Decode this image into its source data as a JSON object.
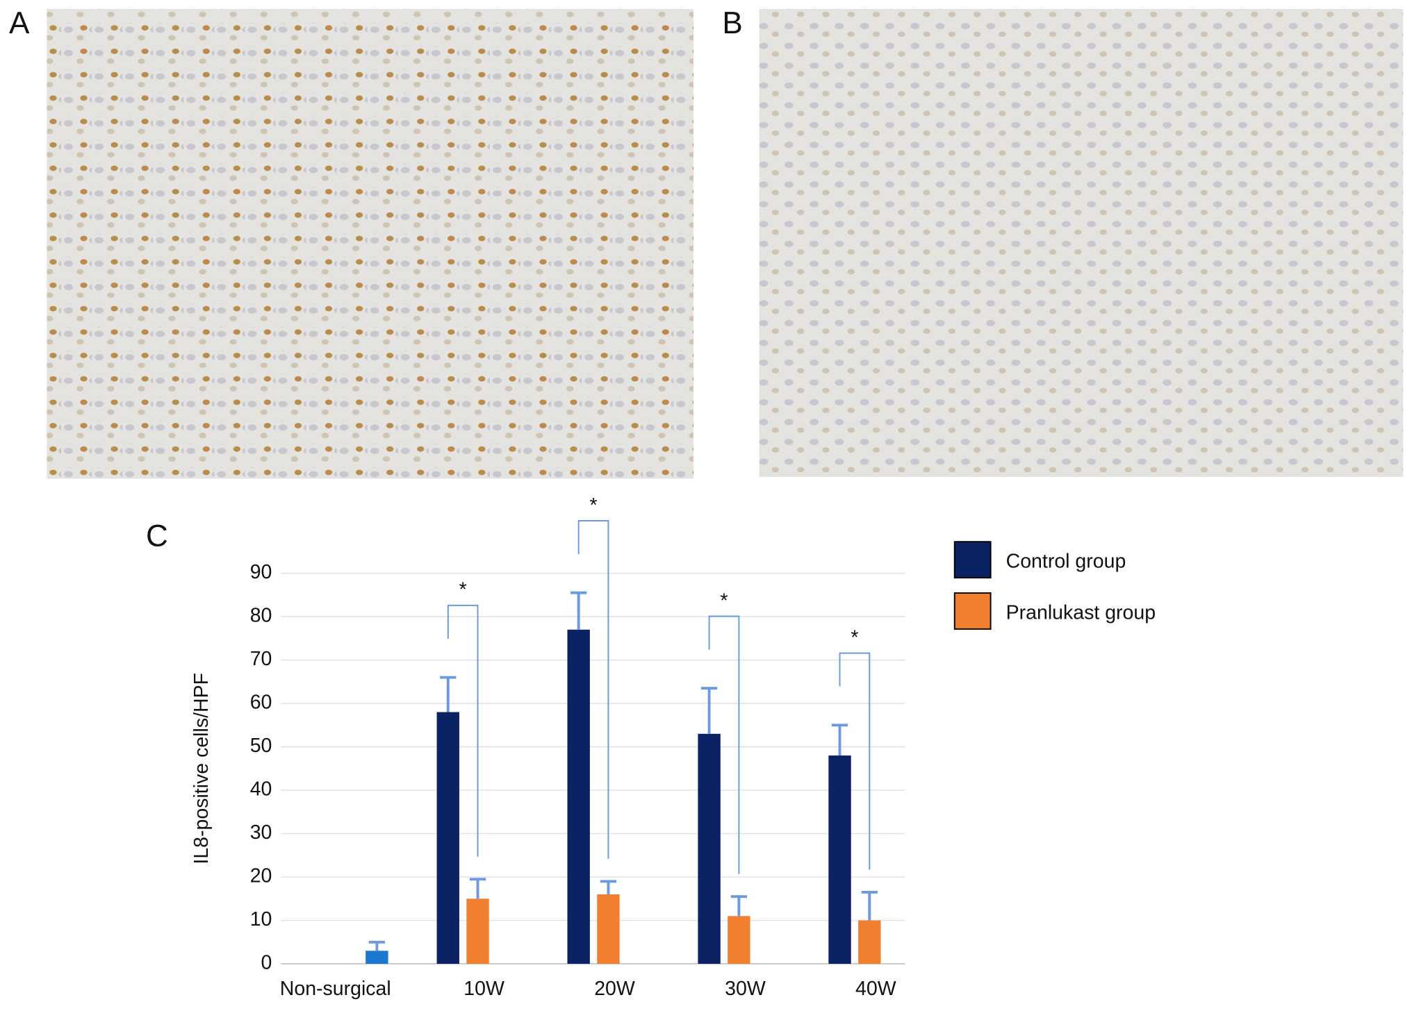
{
  "panel_labels": [
    "A",
    "B"
  ],
  "chart_data": {
    "type": "bar",
    "panel_label": "C",
    "y_label": "IL8-positive cells/HPF",
    "categories": [
      "Non-surgical",
      "10W",
      "20W",
      "30W",
      "40W"
    ],
    "series": [
      {
        "name": "Control group",
        "color": "#0b2265",
        "values": [
          null,
          58,
          77,
          53,
          48
        ],
        "errors": [
          null,
          8,
          8.5,
          10.5,
          7
        ]
      },
      {
        "name": "Pranlukast group",
        "color": "#f08030",
        "values": [
          null,
          15,
          16,
          11,
          10
        ],
        "errors": [
          null,
          4.5,
          3,
          4.5,
          6.5
        ]
      },
      {
        "color": "#1a78d0",
        "values": [
          3,
          null,
          null,
          null,
          null
        ],
        "errors": [
          2,
          null,
          null,
          null,
          null
        ]
      }
    ],
    "annotations": [
      null,
      "*",
      "*",
      "*",
      "*"
    ],
    "ylim": [
      0,
      90
    ],
    "yticks": [
      0,
      10,
      20,
      30,
      40,
      50,
      60,
      70,
      80,
      90
    ],
    "grid": true,
    "error_color": "#6a9ae0",
    "legend": "right"
  }
}
